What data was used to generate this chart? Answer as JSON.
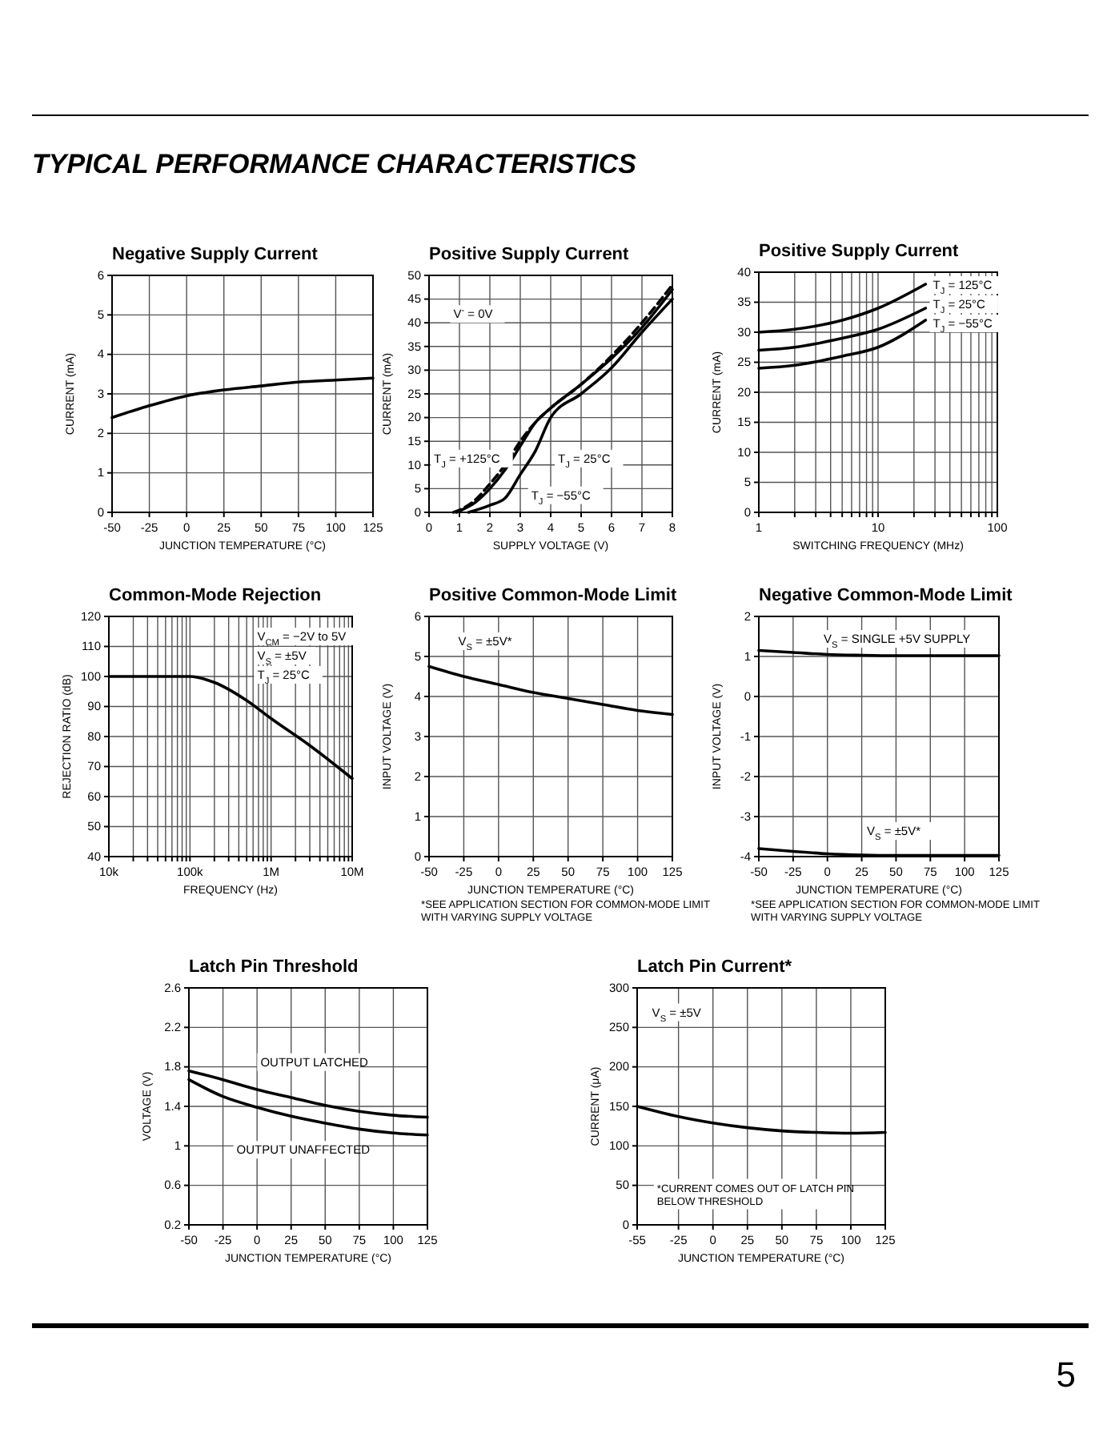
{
  "chart_data": [
    {
      "type": "other",
      "title": "TYPICAL PERFORMANCE CHARACTERISTICS",
      "annotations": [
        "5"
      ]
    },
    {
      "type": "line",
      "title": "Negative Supply Current",
      "xlabel": "JUNCTION TEMPERATURE (°C)",
      "ylabel": "CURRENT (mA)",
      "x": [
        -50,
        -25,
        0,
        25,
        50,
        75,
        100,
        125
      ],
      "series": [
        {
          "color": "#000000",
          "values": [
            2.4,
            2.7,
            2.95,
            3.1,
            3.2,
            3.3,
            3.35,
            3.4
          ]
        }
      ],
      "xlim": [
        -50,
        125
      ],
      "xticks": [
        -50,
        -25,
        0,
        25,
        50,
        75,
        100,
        125
      ],
      "ylim": [
        0,
        6
      ],
      "yticks": [
        0,
        1,
        2,
        3,
        4,
        5,
        6
      ],
      "grid": true
    },
    {
      "type": "line",
      "title": "Positive Supply Current",
      "xlabel": "SUPPLY VOLTAGE (V)",
      "ylabel": "CURRENT (mA)",
      "series": [
        {
          "color": "#000000",
          "line_style": "dashed",
          "x": [
            0.8,
            1,
            1.5,
            2,
            2.5,
            3,
            3.5,
            4,
            5,
            6,
            7,
            8
          ],
          "values": [
            0,
            0.5,
            2.5,
            6,
            10,
            15,
            19,
            22,
            27,
            33,
            40,
            48
          ]
        },
        {
          "color": "#000000",
          "x": [
            0.9,
            1,
            1.5,
            2,
            2.5,
            3,
            3.5,
            4,
            5,
            6,
            7,
            8
          ],
          "values": [
            0,
            0.3,
            2,
            5,
            9,
            14,
            19,
            22,
            27,
            32.5,
            39,
            47
          ]
        },
        {
          "color": "#000000",
          "x": [
            1.3,
            2,
            2.5,
            3,
            3.5,
            4,
            5,
            6,
            7,
            8
          ],
          "values": [
            0,
            1.5,
            3,
            8,
            13,
            20,
            25,
            30.5,
            38,
            45
          ]
        }
      ],
      "annotations": [
        "V$^{-}$ = 0V",
        "T$_{J}$ = +125°C",
        "T$_{J}$ = 25°C",
        "T$_{J}$ = −55°C"
      ],
      "xlim": [
        0,
        8
      ],
      "xticks": [
        0,
        1,
        2,
        3,
        4,
        5,
        6,
        7,
        8
      ],
      "ylim": [
        0,
        50
      ],
      "yticks": [
        0,
        5,
        10,
        15,
        20,
        25,
        30,
        35,
        40,
        45,
        50
      ],
      "grid": true
    },
    {
      "type": "line",
      "title": "Positive Supply Current",
      "xlabel": "SWITCHING FREQUENCY (MHz)",
      "ylabel": "CURRENT (mA)",
      "log": "x",
      "series": [
        {
          "color": "#000000",
          "x": [
            1,
            2,
            5,
            10,
            25
          ],
          "values": [
            30,
            30.5,
            32,
            34,
            38
          ]
        },
        {
          "color": "#000000",
          "x": [
            1,
            2,
            5,
            10,
            25
          ],
          "values": [
            27,
            27.5,
            29,
            30.5,
            34
          ]
        },
        {
          "color": "#000000",
          "x": [
            1,
            2,
            5,
            10,
            25
          ],
          "values": [
            24,
            24.5,
            26,
            27.5,
            32
          ]
        }
      ],
      "annotations": [
        "T$_{J}$ = 125°C",
        "T$_{J}$ = 25°C",
        "T$_{J}$ = −55°C"
      ],
      "xlim": [
        1,
        100
      ],
      "xticks": [
        1,
        {
          "value": 2,
          "label": null
        },
        {
          "value": 3,
          "label": null
        },
        {
          "value": 4,
          "label": null
        },
        {
          "value": 5,
          "label": null
        },
        {
          "value": 6,
          "label": null
        },
        {
          "value": 7,
          "label": null
        },
        {
          "value": 8,
          "label": null
        },
        {
          "value": 9,
          "label": null
        },
        10,
        {
          "value": 20,
          "label": null
        },
        {
          "value": 30,
          "label": null
        },
        {
          "value": 40,
          "label": null
        },
        {
          "value": 50,
          "label": null
        },
        {
          "value": 60,
          "label": null
        },
        {
          "value": 70,
          "label": null
        },
        {
          "value": 80,
          "label": null
        },
        {
          "value": 90,
          "label": null
        },
        100
      ],
      "ylim": [
        0,
        40
      ],
      "yticks": [
        0,
        5,
        10,
        15,
        20,
        25,
        30,
        35,
        40
      ],
      "grid": true
    },
    {
      "type": "line",
      "title": "Common-Mode Rejection",
      "xlabel": "FREQUENCY (Hz)",
      "ylabel": "REJECTION RATIO (dB)",
      "log": "x",
      "series": [
        {
          "color": "#000000",
          "x": [
            10000,
            50000,
            100000,
            200000,
            500000,
            1000000,
            3000000,
            10000000
          ],
          "values": [
            100,
            100,
            100,
            98,
            92,
            86,
            77,
            66
          ]
        }
      ],
      "annotations": [
        "V$_{CM}$ = −2V to 5V",
        "V$_{S}$ = ±5V",
        "T$_{J}$ = 25°C"
      ],
      "xlim": [
        10000,
        10000000
      ],
      "xticks": [
        {
          "value": 10000,
          "label": "10k"
        },
        {
          "value": 20000,
          "label": null
        },
        {
          "value": 30000,
          "label": null
        },
        {
          "value": 40000,
          "label": null
        },
        {
          "value": 50000,
          "label": null
        },
        {
          "value": 60000,
          "label": null
        },
        {
          "value": 70000,
          "label": null
        },
        {
          "value": 80000,
          "label": null
        },
        {
          "value": 90000,
          "label": null
        },
        {
          "value": 100000,
          "label": "100k"
        },
        {
          "value": 200000,
          "label": null
        },
        {
          "value": 300000,
          "label": null
        },
        {
          "value": 400000,
          "label": null
        },
        {
          "value": 500000,
          "label": null
        },
        {
          "value": 600000,
          "label": null
        },
        {
          "value": 700000,
          "label": null
        },
        {
          "value": 800000,
          "label": null
        },
        {
          "value": 900000,
          "label": null
        },
        {
          "value": 1000000,
          "label": "1M"
        },
        {
          "value": 2000000,
          "label": null
        },
        {
          "value": 3000000,
          "label": null
        },
        {
          "value": 4000000,
          "label": null
        },
        {
          "value": 5000000,
          "label": null
        },
        {
          "value": 6000000,
          "label": null
        },
        {
          "value": 7000000,
          "label": null
        },
        {
          "value": 8000000,
          "label": null
        },
        {
          "value": 9000000,
          "label": null
        },
        {
          "value": 10000000,
          "label": "10M"
        }
      ],
      "ylim": [
        40,
        120
      ],
      "yticks": [
        40,
        50,
        60,
        70,
        80,
        90,
        100,
        110,
        120
      ],
      "grid": true
    },
    {
      "type": "line",
      "title": "Positive Common-Mode Limit",
      "xlabel": "JUNCTION TEMPERATURE (°C)",
      "ylabel": "INPUT VOLTAGE (V)",
      "x": [
        -50,
        -25,
        0,
        25,
        50,
        75,
        100,
        125
      ],
      "series": [
        {
          "color": "#000000",
          "values": [
            4.75,
            4.5,
            4.3,
            4.1,
            3.95,
            3.8,
            3.65,
            3.55
          ]
        }
      ],
      "annotations": [
        "V$_{S}$ = ±5V*",
        "*SEE APPLICATION SECTION FOR COMMON-MODE LIMIT WITH VARYING SUPPLY VOLTAGE"
      ],
      "xlim": [
        -50,
        125
      ],
      "xticks": [
        -50,
        -25,
        0,
        25,
        50,
        75,
        100,
        125
      ],
      "ylim": [
        0,
        6
      ],
      "yticks": [
        0,
        1,
        2,
        3,
        4,
        5,
        6
      ],
      "grid": true
    },
    {
      "type": "line",
      "title": "Negative Common-Mode Limit",
      "xlabel": "JUNCTION TEMPERATURE (°C)",
      "ylabel": "INPUT VOLTAGE (V)",
      "x": [
        -50,
        -25,
        0,
        25,
        50,
        75,
        100,
        125
      ],
      "series": [
        {
          "color": "#000000",
          "values": [
            1.15,
            1.1,
            1.05,
            1.03,
            1.02,
            1.02,
            1.02,
            1.02
          ]
        },
        {
          "color": "#000000",
          "values": [
            -3.8,
            -3.87,
            -3.93,
            -3.96,
            -3.97,
            -3.97,
            -3.97,
            -3.97
          ]
        }
      ],
      "annotations": [
        "V$_{S}$ = SINGLE +5V SUPPLY",
        "V$_{S}$ = ±5V*",
        "*SEE APPLICATION SECTION FOR COMMON-MODE LIMIT WITH VARYING SUPPLY VOLTAGE"
      ],
      "xlim": [
        -50,
        125
      ],
      "xticks": [
        -50,
        -25,
        0,
        25,
        50,
        75,
        100,
        125
      ],
      "ylim": [
        -4,
        2
      ],
      "yticks": [
        -4,
        -3,
        -2,
        -1,
        0,
        1,
        2
      ],
      "grid": true
    },
    {
      "type": "line",
      "title": "Latch Pin Threshold",
      "xlabel": "JUNCTION TEMPERATURE (°C)",
      "ylabel": "VOLTAGE (V)",
      "x": [
        -50,
        -25,
        0,
        25,
        50,
        75,
        100,
        125
      ],
      "series": [
        {
          "color": "#000000",
          "values": [
            1.76,
            1.67,
            1.57,
            1.49,
            1.41,
            1.35,
            1.31,
            1.29
          ]
        },
        {
          "color": "#000000",
          "values": [
            1.67,
            1.5,
            1.39,
            1.3,
            1.23,
            1.17,
            1.13,
            1.11
          ]
        }
      ],
      "annotations": [
        "OUTPUT LATCHED",
        "OUTPUT UNAFFECTED"
      ],
      "xlim": [
        -50,
        125
      ],
      "xticks": [
        -50,
        -25,
        0,
        25,
        50,
        75,
        100,
        125
      ],
      "ylim": [
        0.2,
        2.6
      ],
      "yticks": [
        0.2,
        0.6,
        1.0,
        1.4,
        1.8,
        2.2,
        2.6
      ],
      "grid": true
    },
    {
      "type": "line",
      "title": "Latch Pin Current*",
      "xlabel": "JUNCTION TEMPERATURE (°C)",
      "ylabel": "CURRENT (μA)",
      "x": [
        -55,
        -25,
        0,
        25,
        50,
        75,
        100,
        125
      ],
      "series": [
        {
          "color": "#000000",
          "values": [
            150,
            137,
            129,
            123,
            119,
            117,
            116,
            117
          ]
        }
      ],
      "annotations": [
        "V$_{S}$ = ±5V",
        "*CURRENT COMES OUT OF LATCH PIN BELOW THRESHOLD"
      ],
      "xlim": [
        -55,
        125
      ],
      "xticks": [
        -55,
        -25,
        0,
        25,
        50,
        75,
        100,
        125
      ],
      "ylim": [
        0,
        300
      ],
      "yticks": [
        0,
        50,
        100,
        150,
        200,
        250,
        300
      ],
      "grid": true
    }
  ]
}
